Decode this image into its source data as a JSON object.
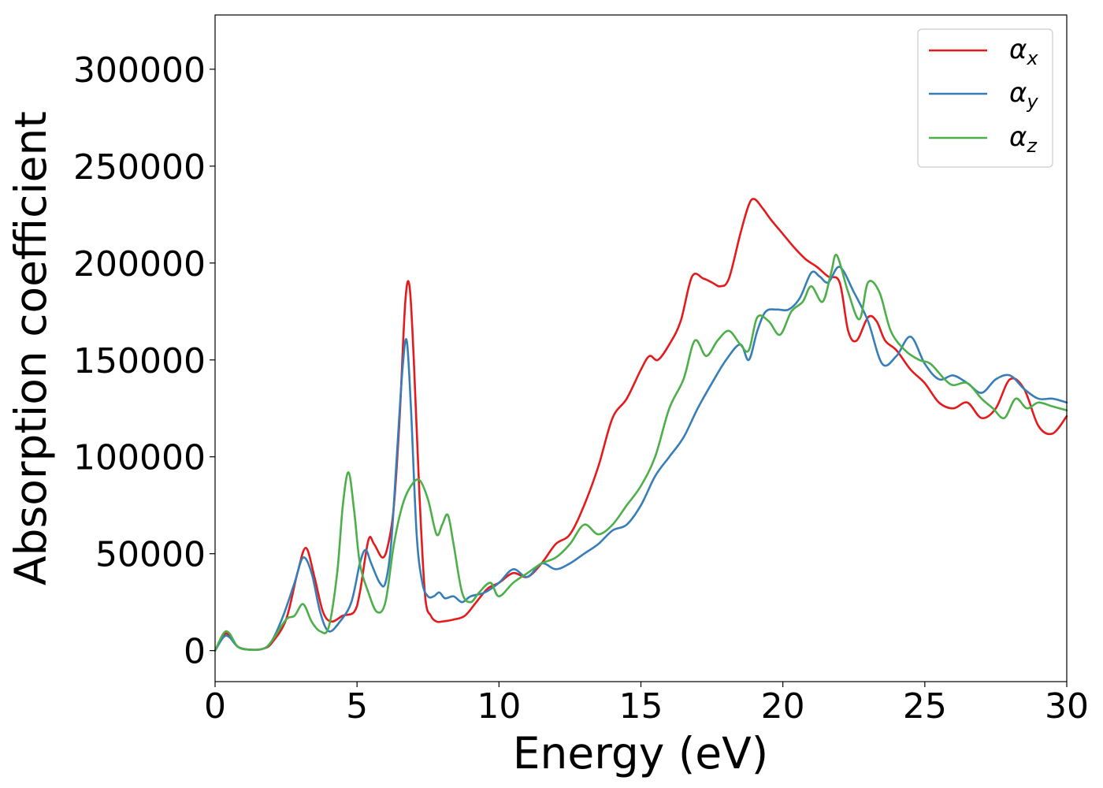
{
  "chart_data": {
    "type": "line",
    "title": "",
    "xlabel": "Energy (eV)",
    "ylabel": "Absorption coefficient",
    "xlim": [
      0,
      30
    ],
    "ylim": [
      -16000,
      328000
    ],
    "xticks": [
      0,
      5,
      10,
      15,
      20,
      25,
      30
    ],
    "yticks": [
      0,
      50000,
      100000,
      150000,
      200000,
      250000,
      300000
    ],
    "xtick_labels": [
      "0",
      "5",
      "10",
      "15",
      "20",
      "25",
      "30"
    ],
    "ytick_labels": [
      "0",
      "50000",
      "100000",
      "150000",
      "200000",
      "250000",
      "300000"
    ],
    "grid": false,
    "legend_position": "top-right",
    "series": [
      {
        "name": "αx",
        "symbol": "α",
        "subscript": "x",
        "color": "#e41a1c",
        "x": [
          0,
          0.3,
          0.5,
          0.8,
          1.2,
          1.7,
          2.0,
          2.5,
          2.9,
          3.2,
          3.5,
          3.8,
          4.1,
          4.5,
          4.9,
          5.1,
          5.4,
          5.6,
          5.9,
          6.1,
          6.3,
          6.5,
          6.7,
          6.85,
          7.0,
          7.2,
          7.4,
          7.6,
          7.8,
          8.0,
          8.4,
          8.8,
          9.2,
          9.6,
          10.0,
          10.5,
          11.0,
          11.5,
          12.0,
          12.5,
          13.0,
          13.5,
          14.0,
          14.5,
          15.0,
          15.3,
          15.6,
          16.0,
          16.4,
          16.8,
          17.2,
          17.5,
          17.8,
          18.1,
          18.5,
          18.8,
          19.0,
          19.3,
          19.6,
          20.0,
          20.4,
          20.8,
          21.2,
          21.6,
          22.0,
          22.3,
          22.6,
          23.0,
          23.3,
          23.6,
          24.0,
          24.5,
          25.0,
          25.5,
          26.0,
          26.5,
          27.0,
          27.5,
          28.0,
          28.5,
          29.0,
          29.5,
          30.0
        ],
        "y": [
          0,
          8000,
          8000,
          2000,
          500,
          1000,
          4000,
          16000,
          40000,
          53000,
          38000,
          20000,
          15000,
          18000,
          20000,
          30000,
          57000,
          55000,
          48000,
          55000,
          75000,
          120000,
          180000,
          188000,
          150000,
          80000,
          28000,
          18000,
          15000,
          15000,
          16000,
          18000,
          25000,
          32000,
          35000,
          40000,
          38000,
          45000,
          55000,
          60000,
          75000,
          95000,
          120000,
          130000,
          145000,
          152000,
          150000,
          158000,
          170000,
          193000,
          192000,
          190000,
          188000,
          192000,
          215000,
          230000,
          233000,
          228000,
          222000,
          215000,
          208000,
          202000,
          198000,
          193000,
          190000,
          165000,
          160000,
          172000,
          170000,
          160000,
          155000,
          145000,
          138000,
          128000,
          125000,
          128000,
          120000,
          125000,
          140000,
          135000,
          116000,
          112000,
          121000
        ]
      },
      {
        "name": "αy",
        "symbol": "α",
        "subscript": "y",
        "color": "#377eb8",
        "x": [
          0,
          0.3,
          0.5,
          0.8,
          1.2,
          1.7,
          2.0,
          2.4,
          2.8,
          3.1,
          3.4,
          3.7,
          4.0,
          4.4,
          4.8,
          5.1,
          5.3,
          5.5,
          5.8,
          6.0,
          6.2,
          6.4,
          6.6,
          6.75,
          6.9,
          7.1,
          7.3,
          7.5,
          7.7,
          7.9,
          8.1,
          8.4,
          8.7,
          9.0,
          9.5,
          10.0,
          10.5,
          11.0,
          11.5,
          12.0,
          12.5,
          13.0,
          13.5,
          14.0,
          14.5,
          15.0,
          15.5,
          16.0,
          16.5,
          17.0,
          17.5,
          18.0,
          18.5,
          18.8,
          19.1,
          19.4,
          19.8,
          20.2,
          20.6,
          21.0,
          21.3,
          21.6,
          22.0,
          22.5,
          23.0,
          23.5,
          24.0,
          24.5,
          25.0,
          25.5,
          26.0,
          26.5,
          27.0,
          27.5,
          28.0,
          28.5,
          29.0,
          29.5,
          30.0
        ],
        "y": [
          0,
          7000,
          7000,
          2000,
          500,
          1000,
          5000,
          18000,
          35000,
          48000,
          40000,
          20000,
          10000,
          15000,
          25000,
          45000,
          52000,
          45000,
          35000,
          35000,
          55000,
          100000,
          145000,
          160000,
          125000,
          60000,
          35000,
          28000,
          28000,
          30000,
          27000,
          28000,
          25000,
          28000,
          30000,
          35000,
          42000,
          38000,
          45000,
          42000,
          45000,
          50000,
          55000,
          62000,
          65000,
          75000,
          90000,
          100000,
          110000,
          125000,
          138000,
          150000,
          158000,
          150000,
          165000,
          175000,
          176000,
          176000,
          182000,
          195000,
          193000,
          190000,
          198000,
          185000,
          170000,
          148000,
          152000,
          162000,
          148000,
          140000,
          142000,
          138000,
          133000,
          140000,
          142000,
          135000,
          130000,
          130000,
          128000
        ]
      },
      {
        "name": "αz",
        "symbol": "α",
        "subscript": "z",
        "color": "#4daf4a",
        "x": [
          0,
          0.3,
          0.5,
          0.8,
          1.2,
          1.7,
          2.0,
          2.5,
          2.8,
          3.1,
          3.4,
          3.7,
          4.0,
          4.3,
          4.5,
          4.7,
          4.9,
          5.1,
          5.4,
          5.7,
          6.0,
          6.3,
          6.6,
          6.9,
          7.2,
          7.5,
          7.8,
          8.0,
          8.2,
          8.4,
          8.7,
          9.0,
          9.3,
          9.7,
          10.0,
          10.5,
          11.0,
          11.5,
          12.0,
          12.5,
          13.0,
          13.5,
          14.0,
          14.5,
          15.0,
          15.5,
          16.0,
          16.5,
          16.9,
          17.3,
          17.7,
          18.1,
          18.5,
          18.8,
          19.1,
          19.5,
          19.9,
          20.3,
          20.7,
          21.0,
          21.4,
          21.7,
          21.9,
          22.3,
          22.7,
          23.0,
          23.4,
          23.8,
          24.3,
          24.8,
          25.2,
          25.7,
          26.0,
          26.5,
          27.0,
          27.4,
          27.8,
          28.2,
          28.6,
          29.0,
          29.5,
          30.0
        ],
        "y": [
          0,
          9000,
          9000,
          2000,
          500,
          1000,
          5000,
          16000,
          18000,
          24000,
          15000,
          10000,
          12000,
          40000,
          75000,
          92000,
          72000,
          45000,
          30000,
          20000,
          25000,
          55000,
          75000,
          85000,
          88000,
          78000,
          60000,
          65000,
          70000,
          55000,
          30000,
          25000,
          30000,
          35000,
          28000,
          35000,
          40000,
          45000,
          48000,
          55000,
          65000,
          60000,
          65000,
          75000,
          85000,
          100000,
          125000,
          140000,
          160000,
          152000,
          160000,
          165000,
          158000,
          155000,
          172000,
          170000,
          163000,
          175000,
          180000,
          188000,
          180000,
          195000,
          204000,
          185000,
          171000,
          190000,
          185000,
          165000,
          155000,
          150000,
          148000,
          140000,
          137000,
          138000,
          130000,
          125000,
          120000,
          130000,
          125000,
          128000,
          126000,
          124000
        ]
      }
    ]
  }
}
